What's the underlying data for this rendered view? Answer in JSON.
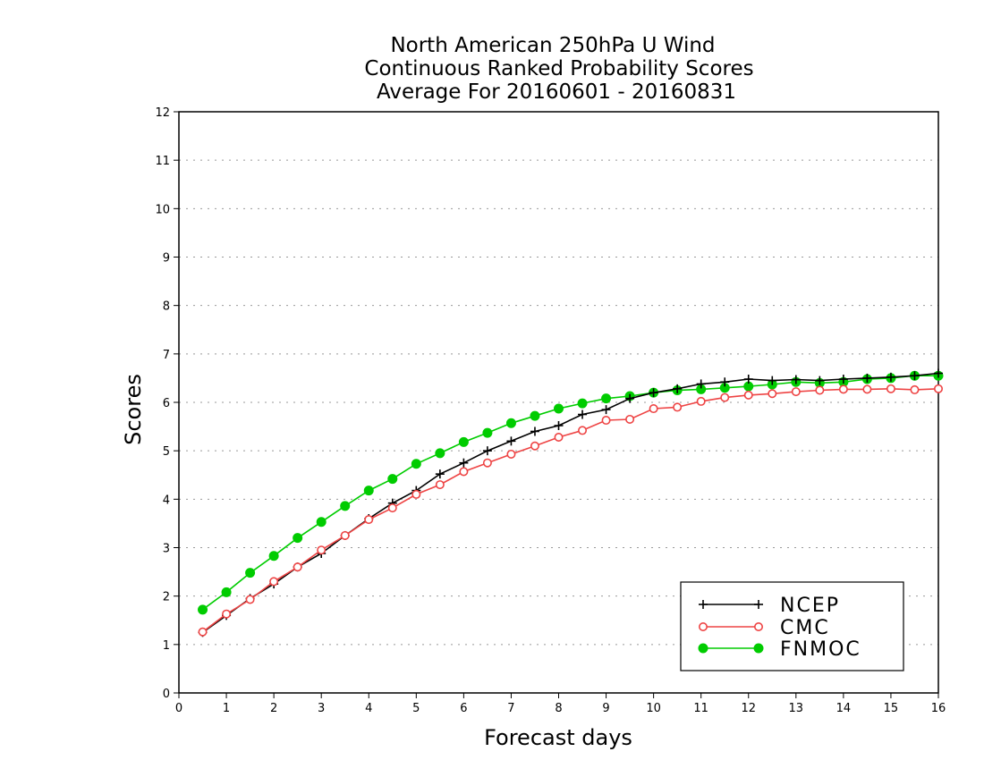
{
  "chart_data": {
    "type": "line",
    "title_lines": [
      "North American 250hPa U Wind",
      "Continuous Ranked Probability Scores",
      "Average For 20160601 - 20160831"
    ],
    "xlabel": "Forecast days",
    "ylabel": "Scores",
    "xlim": [
      0,
      16
    ],
    "ylim": [
      0,
      12
    ],
    "xticks": [
      "0",
      "1",
      "2",
      "3",
      "4",
      "5",
      "6",
      "7",
      "8",
      "9",
      "10",
      "11",
      "12",
      "13",
      "14",
      "15",
      "16"
    ],
    "yticks": [
      "0",
      "1",
      "2",
      "3",
      "4",
      "5",
      "6",
      "7",
      "8",
      "9",
      "10",
      "11",
      "12"
    ],
    "grid": "horizontal-dotted",
    "legend_position": "bottom-right",
    "x": [
      0.5,
      1,
      1.5,
      2,
      2.5,
      3,
      3.5,
      4,
      4.5,
      5,
      5.5,
      6,
      6.5,
      7,
      7.5,
      8,
      8.5,
      9,
      9.5,
      10,
      10.5,
      11,
      11.5,
      12,
      12.5,
      13,
      13.5,
      14,
      14.5,
      15,
      15.5,
      16
    ],
    "series": [
      {
        "name": "NCEP",
        "color": "#000000",
        "marker": "plus",
        "values": [
          1.25,
          1.6,
          1.95,
          2.25,
          2.6,
          2.88,
          3.25,
          3.6,
          3.92,
          4.18,
          4.52,
          4.75,
          5.0,
          5.2,
          5.4,
          5.52,
          5.75,
          5.85,
          6.08,
          6.2,
          6.28,
          6.38,
          6.42,
          6.48,
          6.45,
          6.47,
          6.45,
          6.48,
          6.5,
          6.52,
          6.55,
          6.6
        ]
      },
      {
        "name": "CMC",
        "color": "#ee4444",
        "marker": "open-circle",
        "values": [
          1.26,
          1.63,
          1.93,
          2.3,
          2.6,
          2.95,
          3.25,
          3.58,
          3.82,
          4.1,
          4.3,
          4.57,
          4.75,
          4.93,
          5.1,
          5.28,
          5.42,
          5.63,
          5.65,
          5.87,
          5.9,
          6.02,
          6.1,
          6.15,
          6.18,
          6.22,
          6.25,
          6.27,
          6.27,
          6.28,
          6.26,
          6.28
        ]
      },
      {
        "name": "FNMOC",
        "color": "#00cc00",
        "marker": "filled-circle",
        "values": [
          1.72,
          2.08,
          2.48,
          2.83,
          3.2,
          3.53,
          3.86,
          4.18,
          4.42,
          4.73,
          4.95,
          5.18,
          5.37,
          5.57,
          5.72,
          5.87,
          5.98,
          6.08,
          6.13,
          6.2,
          6.25,
          6.27,
          6.3,
          6.33,
          6.37,
          6.42,
          6.4,
          6.42,
          6.48,
          6.5,
          6.55,
          6.55
        ]
      }
    ]
  }
}
